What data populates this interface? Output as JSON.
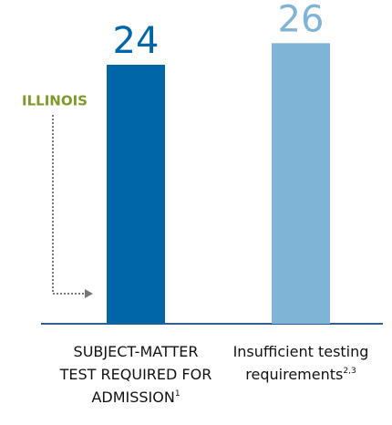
{
  "chart_data": {
    "type": "bar",
    "categories": [
      "SUBJECT-MATTER TEST REQUIRED FOR ADMISSION",
      "Insufficient testing requirements"
    ],
    "category_notes": [
      "1",
      "2,3"
    ],
    "values": [
      24,
      26
    ],
    "colors": [
      "#0066a6",
      "#80b4d6"
    ],
    "ylim": [
      0,
      30
    ],
    "annotation": "ILLINOIS",
    "annotation_color": "#7d9a2b"
  }
}
